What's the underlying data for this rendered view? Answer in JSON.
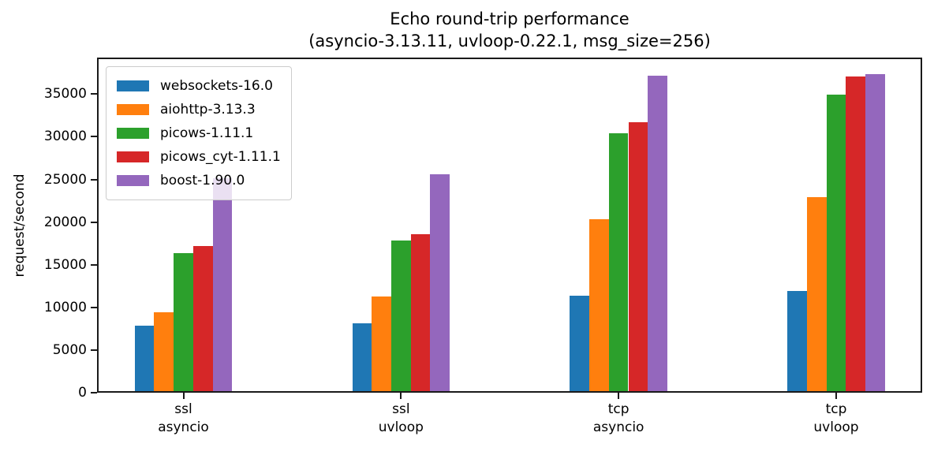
{
  "figure": {
    "title_line1": "Echo round-trip performance",
    "title_line2": "(asyncio-3.13.11, uvloop-0.22.1, msg_size=256)"
  },
  "chart_data": {
    "type": "bar",
    "title": "Echo round-trip performance\n(asyncio-3.13.11, uvloop-0.22.1, msg_size=256)",
    "xlabel": "",
    "ylabel": "request/second",
    "ylim": [
      0,
      39280
    ],
    "yticks": [
      0,
      5000,
      10000,
      15000,
      20000,
      25000,
      30000,
      35000
    ],
    "grid": false,
    "legend": {
      "position": "upper-left",
      "border_color": "#cccccc"
    },
    "categories": [
      "ssl\nasyncio",
      "ssl\nuvloop",
      "tcp\nasyncio",
      "tcp\nuvloop"
    ],
    "series": [
      {
        "name": "websockets-16.0",
        "color": "#1f77b4",
        "values": [
          7900,
          8100,
          11400,
          11900
        ]
      },
      {
        "name": "aiohttp-3.13.3",
        "color": "#ff7f0e",
        "values": [
          9450,
          11250,
          20300,
          22950
        ]
      },
      {
        "name": "picows-1.11.1",
        "color": "#2ca02c",
        "values": [
          16400,
          17800,
          30450,
          34950
        ]
      },
      {
        "name": "picows_cyt-1.11.1",
        "color": "#d62728",
        "values": [
          17150,
          18550,
          31700,
          37100
        ]
      },
      {
        "name": "boost-1.90.0",
        "color": "#9467bd",
        "values": [
          25100,
          25600,
          37200,
          37300
        ]
      }
    ]
  }
}
